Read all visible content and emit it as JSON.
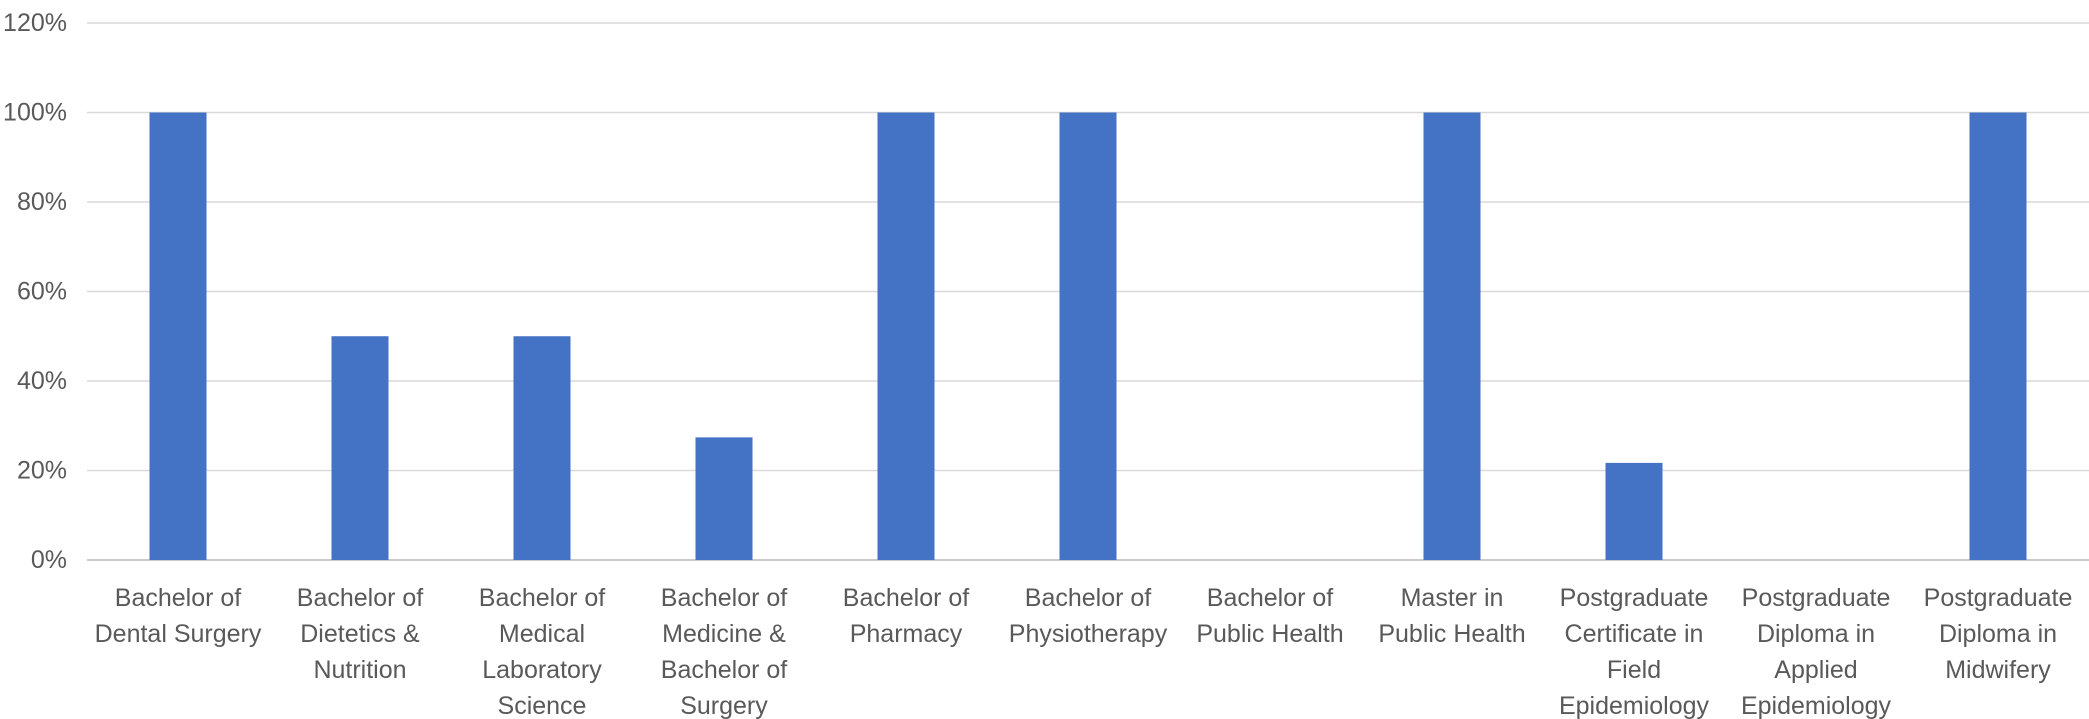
{
  "chart_data": {
    "type": "bar",
    "categories": [
      "Bachelor of Dental Surgery",
      "Bachelor of Dietetics & Nutrition",
      "Bachelor of Medical Laboratory Science",
      "Bachelor of Medicine & Bachelor of Surgery",
      "Bachelor of Pharmacy",
      "Bachelor of Physiotherapy",
      "Bachelor of Public Health",
      "Master in Public Health",
      "Postgraduate Certificate in Field Epidemiology",
      "Postgraduate Diploma in Applied Epidemiology",
      "Postgraduate Diploma in Midwifery"
    ],
    "values": [
      100,
      50,
      50,
      27.4,
      100,
      100,
      0,
      100,
      21.7,
      0,
      100
    ],
    "color": "#4472c4",
    "ylim": [
      0,
      120
    ],
    "yticks": [
      {
        "value": 0,
        "label": "0%"
      },
      {
        "value": 20,
        "label": "20%"
      },
      {
        "value": 40,
        "label": "40%"
      },
      {
        "value": 60,
        "label": "60%"
      },
      {
        "value": 80,
        "label": "80%"
      },
      {
        "value": 100,
        "label": "100%"
      },
      {
        "value": 120,
        "label": "120%"
      }
    ],
    "grid": true
  }
}
